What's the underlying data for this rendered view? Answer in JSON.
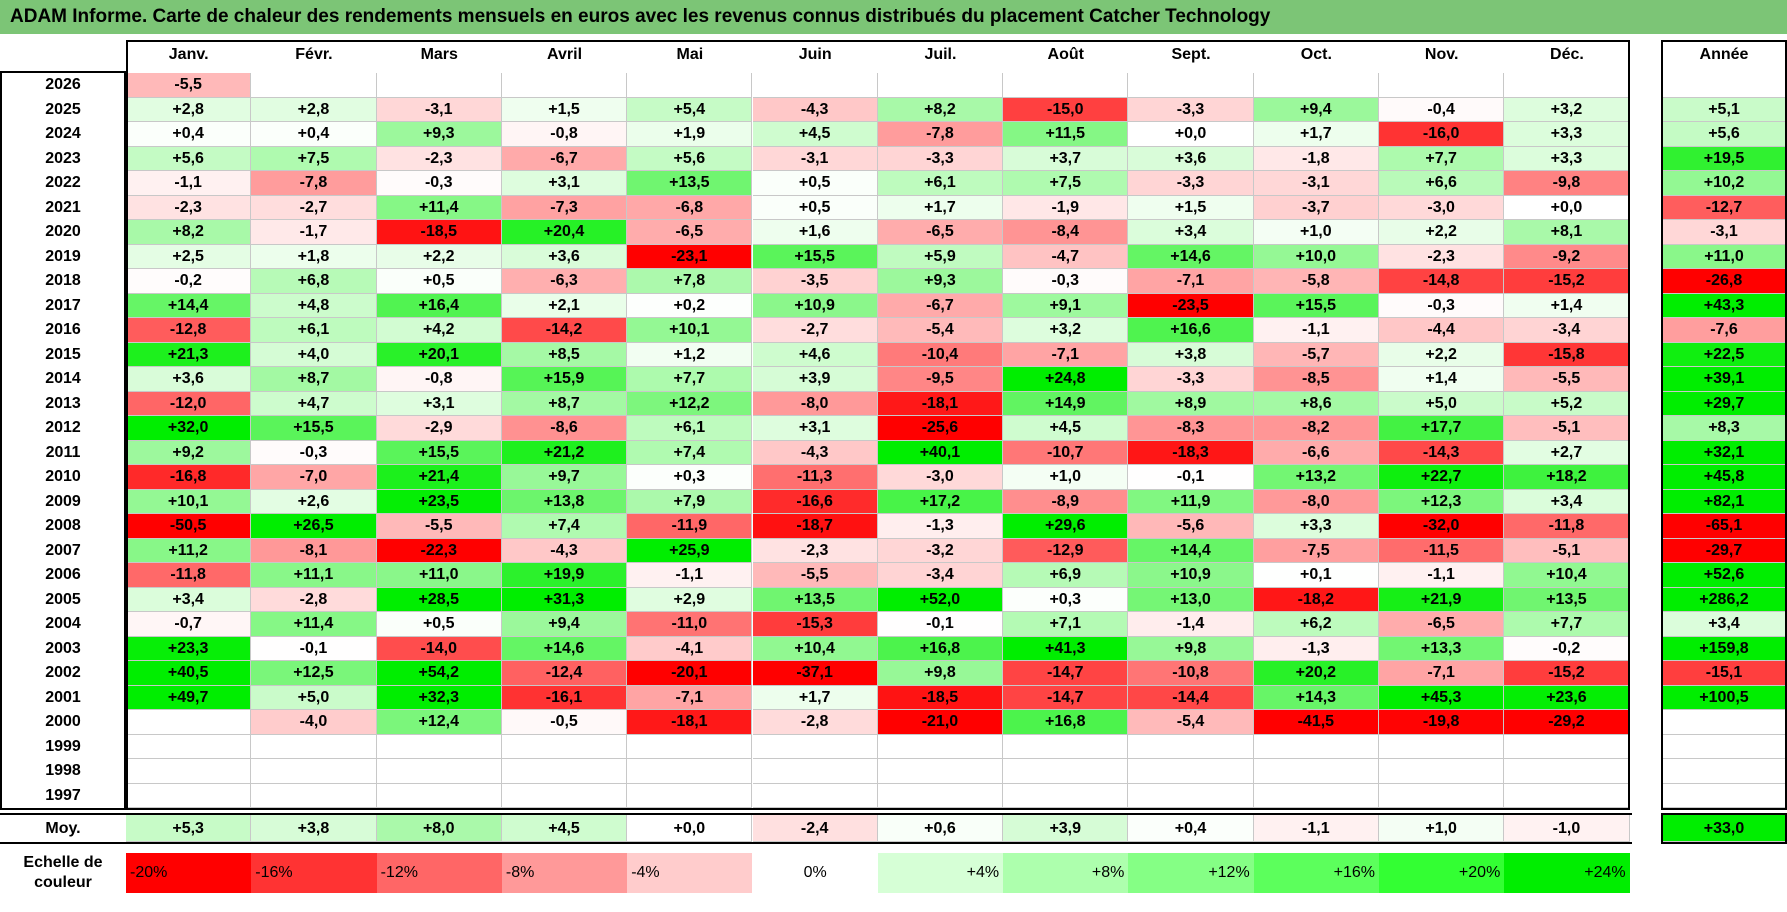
{
  "title": "ADAM Informe. Carte de chaleur des rendements mensuels en euros avec les revenus connus distribués du placement Catcher Technology",
  "chart_data": {
    "type": "heatmap",
    "columns": [
      "Janv.",
      "Févr.",
      "Mars",
      "Avril",
      "Mai",
      "Juin",
      "Juil.",
      "Août",
      "Sept.",
      "Oct.",
      "Nov.",
      "Déc."
    ],
    "year_header": "Année",
    "rows": [
      {
        "year": "2026",
        "values": [
          "-5,5",
          "",
          "",
          "",
          "",
          "",
          "",
          "",
          "",
          "",
          "",
          ""
        ],
        "annual": ""
      },
      {
        "year": "2025",
        "values": [
          "+2,8",
          "+2,8",
          "-3,1",
          "+1,5",
          "+5,4",
          "-4,3",
          "+8,2",
          "-15,0",
          "-3,3",
          "+9,4",
          "-0,4",
          "+3,2"
        ],
        "annual": "+5,1"
      },
      {
        "year": "2024",
        "values": [
          "+0,4",
          "+0,4",
          "+9,3",
          "-0,8",
          "+1,9",
          "+4,5",
          "-7,8",
          "+11,5",
          "+0,0",
          "+1,7",
          "-16,0",
          "+3,3"
        ],
        "annual": "+5,6"
      },
      {
        "year": "2023",
        "values": [
          "+5,6",
          "+7,5",
          "-2,3",
          "-6,7",
          "+5,6",
          "-3,1",
          "-3,3",
          "+3,7",
          "+3,6",
          "-1,8",
          "+7,7",
          "+3,3"
        ],
        "annual": "+19,5"
      },
      {
        "year": "2022",
        "values": [
          "-1,1",
          "-7,8",
          "-0,3",
          "+3,1",
          "+13,5",
          "+0,5",
          "+6,1",
          "+7,5",
          "-3,3",
          "-3,1",
          "+6,6",
          "-9,8"
        ],
        "annual": "+10,2"
      },
      {
        "year": "2021",
        "values": [
          "-2,3",
          "-2,7",
          "+11,4",
          "-7,3",
          "-6,8",
          "+0,5",
          "+1,7",
          "-1,9",
          "+1,5",
          "-3,7",
          "-3,0",
          "+0,0"
        ],
        "annual": "-12,7"
      },
      {
        "year": "2020",
        "values": [
          "+8,2",
          "-1,7",
          "-18,5",
          "+20,4",
          "-6,5",
          "+1,6",
          "-6,5",
          "-8,4",
          "+3,4",
          "+1,0",
          "+2,2",
          "+8,1"
        ],
        "annual": "-3,1"
      },
      {
        "year": "2019",
        "values": [
          "+2,5",
          "+1,8",
          "+2,2",
          "+3,6",
          "-23,1",
          "+15,5",
          "+5,9",
          "-4,7",
          "+14,6",
          "+10,0",
          "-2,3",
          "-9,2"
        ],
        "annual": "+11,0"
      },
      {
        "year": "2018",
        "values": [
          "-0,2",
          "+6,8",
          "+0,5",
          "-6,3",
          "+7,8",
          "-3,5",
          "+9,3",
          "-0,3",
          "-7,1",
          "-5,8",
          "-14,8",
          "-15,2"
        ],
        "annual": "-26,8"
      },
      {
        "year": "2017",
        "values": [
          "+14,4",
          "+4,8",
          "+16,4",
          "+2,1",
          "+0,2",
          "+10,9",
          "-6,7",
          "+9,1",
          "-23,5",
          "+15,5",
          "-0,3",
          "+1,4"
        ],
        "annual": "+43,3"
      },
      {
        "year": "2016",
        "values": [
          "-12,8",
          "+6,1",
          "+4,2",
          "-14,2",
          "+10,1",
          "-2,7",
          "-5,4",
          "+3,2",
          "+16,6",
          "-1,1",
          "-4,4",
          "-3,4"
        ],
        "annual": "-7,6"
      },
      {
        "year": "2015",
        "values": [
          "+21,3",
          "+4,0",
          "+20,1",
          "+8,5",
          "+1,2",
          "+4,6",
          "-10,4",
          "-7,1",
          "+3,8",
          "-5,7",
          "+2,2",
          "-15,8"
        ],
        "annual": "+22,5"
      },
      {
        "year": "2014",
        "values": [
          "+3,6",
          "+8,7",
          "-0,8",
          "+15,9",
          "+7,7",
          "+3,9",
          "-9,5",
          "+24,8",
          "-3,3",
          "-8,5",
          "+1,4",
          "-5,5"
        ],
        "annual": "+39,1"
      },
      {
        "year": "2013",
        "values": [
          "-12,0",
          "+4,7",
          "+3,1",
          "+8,7",
          "+12,2",
          "-8,0",
          "-18,1",
          "+14,9",
          "+8,9",
          "+8,6",
          "+5,0",
          "+5,2"
        ],
        "annual": "+29,7"
      },
      {
        "year": "2012",
        "values": [
          "+32,0",
          "+15,5",
          "-2,9",
          "-8,6",
          "+6,1",
          "+3,1",
          "-25,6",
          "+4,5",
          "-8,3",
          "-8,2",
          "+17,7",
          "-5,1"
        ],
        "annual": "+8,3"
      },
      {
        "year": "2011",
        "values": [
          "+9,2",
          "-0,3",
          "+15,5",
          "+21,2",
          "+7,4",
          "-4,3",
          "+40,1",
          "-10,7",
          "-18,3",
          "-6,6",
          "-14,3",
          "+2,7"
        ],
        "annual": "+32,1"
      },
      {
        "year": "2010",
        "values": [
          "-16,8",
          "-7,0",
          "+21,4",
          "+9,7",
          "+0,3",
          "-11,3",
          "-3,0",
          "+1,0",
          "-0,1",
          "+13,2",
          "+22,7",
          "+18,2"
        ],
        "annual": "+45,8"
      },
      {
        "year": "2009",
        "values": [
          "+10,1",
          "+2,6",
          "+23,5",
          "+13,8",
          "+7,9",
          "-16,6",
          "+17,2",
          "-8,9",
          "+11,9",
          "-8,0",
          "+12,3",
          "+3,4"
        ],
        "annual": "+82,1"
      },
      {
        "year": "2008",
        "values": [
          "-50,5",
          "+26,5",
          "-5,5",
          "+7,4",
          "-11,9",
          "-18,7",
          "-1,3",
          "+29,6",
          "-5,6",
          "+3,3",
          "-32,0",
          "-11,8"
        ],
        "annual": "-65,1"
      },
      {
        "year": "2007",
        "values": [
          "+11,2",
          "-8,1",
          "-22,3",
          "-4,3",
          "+25,9",
          "-2,3",
          "-3,2",
          "-12,9",
          "+14,4",
          "-7,5",
          "-11,5",
          "-5,1"
        ],
        "annual": "-29,7"
      },
      {
        "year": "2006",
        "values": [
          "-11,8",
          "+11,1",
          "+11,0",
          "+19,9",
          "-1,1",
          "-5,5",
          "-3,4",
          "+6,9",
          "+10,9",
          "+0,1",
          "-1,1",
          "+10,4"
        ],
        "annual": "+52,6"
      },
      {
        "year": "2005",
        "values": [
          "+3,4",
          "-2,8",
          "+28,5",
          "+31,3",
          "+2,9",
          "+13,5",
          "+52,0",
          "+0,3",
          "+13,0",
          "-18,2",
          "+21,9",
          "+13,5"
        ],
        "annual": "+286,2"
      },
      {
        "year": "2004",
        "values": [
          "-0,7",
          "+11,4",
          "+0,5",
          "+9,4",
          "-11,0",
          "-15,3",
          "-0,1",
          "+7,1",
          "-1,4",
          "+6,2",
          "-6,5",
          "+7,7"
        ],
        "annual": "+3,4"
      },
      {
        "year": "2003",
        "values": [
          "+23,3",
          "-0,1",
          "-14,0",
          "+14,6",
          "-4,1",
          "+10,4",
          "+16,8",
          "+41,3",
          "+9,8",
          "-1,3",
          "+13,3",
          "-0,2"
        ],
        "annual": "+159,8"
      },
      {
        "year": "2002",
        "values": [
          "+40,5",
          "+12,5",
          "+54,2",
          "-12,4",
          "-20,1",
          "-37,1",
          "+9,8",
          "-14,7",
          "-10,8",
          "+20,2",
          "-7,1",
          "-15,2"
        ],
        "annual": "-15,1"
      },
      {
        "year": "2001",
        "values": [
          "+49,7",
          "+5,0",
          "+32,3",
          "-16,1",
          "-7,1",
          "+1,7",
          "-18,5",
          "-14,7",
          "-14,4",
          "+14,3",
          "+45,3",
          "+23,6"
        ],
        "annual": "+100,5"
      },
      {
        "year": "2000",
        "values": [
          "",
          "-4,0",
          "+12,4",
          "-0,5",
          "-18,1",
          "-2,8",
          "-21,0",
          "+16,8",
          "-5,4",
          "-41,5",
          "-19,8",
          "-29,2"
        ],
        "annual": ""
      },
      {
        "year": "1999",
        "values": [
          "",
          "",
          "",
          "",
          "",
          "",
          "",
          "",
          "",
          "",
          "",
          ""
        ],
        "annual": ""
      },
      {
        "year": "1998",
        "values": [
          "",
          "",
          "",
          "",
          "",
          "",
          "",
          "",
          "",
          "",
          "",
          ""
        ],
        "annual": ""
      },
      {
        "year": "1997",
        "values": [
          "",
          "",
          "",
          "",
          "",
          "",
          "",
          "",
          "",
          "",
          "",
          ""
        ],
        "annual": ""
      }
    ],
    "average": {
      "label": "Moy.",
      "values": [
        "+5,3",
        "+3,8",
        "+8,0",
        "+4,5",
        "+0,0",
        "-2,4",
        "+0,6",
        "+3,9",
        "+0,4",
        "-1,1",
        "+1,0",
        "-1,0"
      ],
      "annual": "+33,0"
    },
    "scale": {
      "label_line1": "Echelle de",
      "label_line2": "couleur",
      "stops": [
        {
          "label": "-20%",
          "value": -20,
          "color": "#ff0000"
        },
        {
          "label": "-16%",
          "value": -16,
          "color": "#ff3333"
        },
        {
          "label": "-12%",
          "value": -12,
          "color": "#ff6666"
        },
        {
          "label": "-8%",
          "value": -8,
          "color": "#ff9999"
        },
        {
          "label": "-4%",
          "value": -4,
          "color": "#ffcccc"
        },
        {
          "label": "0%",
          "value": 0,
          "color": "#ffffff"
        },
        {
          "label": "+4%",
          "value": 4,
          "color": "#d6ffd6"
        },
        {
          "label": "+8%",
          "value": 8,
          "color": "#adffad"
        },
        {
          "label": "+12%",
          "value": 12,
          "color": "#85ff85"
        },
        {
          "label": "+16%",
          "value": 16,
          "color": "#5cff5c"
        },
        {
          "label": "+20%",
          "value": 20,
          "color": "#33ff33"
        },
        {
          "label": "+24%",
          "value": 24,
          "color": "#00ee00"
        }
      ]
    }
  }
}
